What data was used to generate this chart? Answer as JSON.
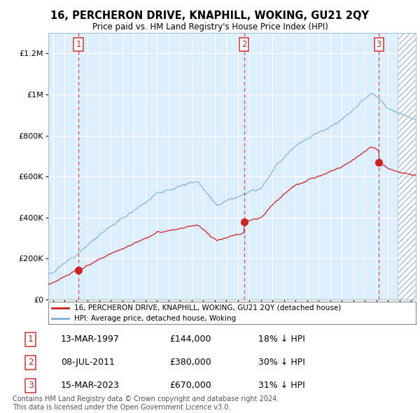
{
  "title": "16, PERCHERON DRIVE, KNAPHILL, WOKING, GU21 2QY",
  "subtitle": "Price paid vs. HM Land Registry's House Price Index (HPI)",
  "legend_label_red": "16, PERCHERON DRIVE, KNAPHILL, WOKING, GU21 2QY (detached house)",
  "legend_label_blue": "HPI: Average price, detached house, Woking",
  "transactions": [
    {
      "num": 1,
      "date": "13-MAR-1997",
      "price": 144000,
      "year": 1997.2,
      "hpi_pct": "18% ↓ HPI"
    },
    {
      "num": 2,
      "date": "08-JUL-2011",
      "price": 380000,
      "year": 2011.53,
      "hpi_pct": "30% ↓ HPI"
    },
    {
      "num": 3,
      "date": "15-MAR-2023",
      "price": 670000,
      "year": 2023.21,
      "hpi_pct": "31% ↓ HPI"
    }
  ],
  "footer": "Contains HM Land Registry data © Crown copyright and database right 2024.\nThis data is licensed under the Open Government Licence v3.0.",
  "ylim": [
    0,
    1300000
  ],
  "xlim_start": 1994.6,
  "xlim_end": 2026.4,
  "hatch_start": 2024.8
}
